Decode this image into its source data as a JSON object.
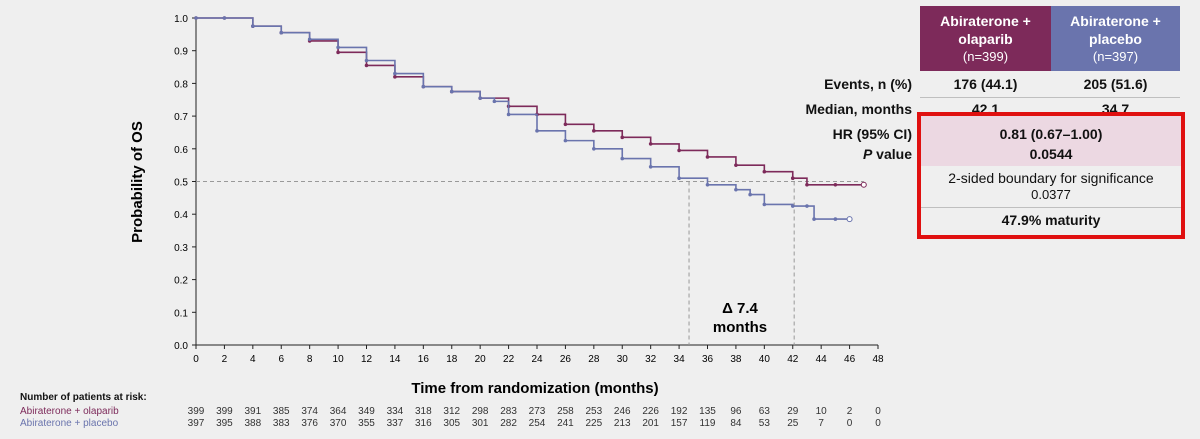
{
  "chart_data": {
    "type": "line",
    "ylabel": "Probability of OS",
    "xlabel": "Time from randomization (months)",
    "xlim": [
      0,
      48
    ],
    "ylim": [
      0,
      1
    ],
    "x_ticks": [
      "0",
      "2",
      "4",
      "6",
      "8",
      "10",
      "12",
      "14",
      "16",
      "18",
      "20",
      "22",
      "24",
      "26",
      "28",
      "30",
      "32",
      "34",
      "36",
      "38",
      "40",
      "42",
      "44",
      "46",
      "48"
    ],
    "y_ticks": [
      "0.0",
      "0.1",
      "0.2",
      "0.3",
      "0.4",
      "0.5",
      "0.6",
      "0.7",
      "0.8",
      "0.9",
      "1.0"
    ],
    "reference_y": 0.5,
    "median_markers_x": [
      34.7,
      42.1
    ],
    "series": [
      {
        "name": "Abiraterone + olaparib",
        "color": "#7d2a5a",
        "points": [
          [
            0,
            1.0
          ],
          [
            2,
            1.0
          ],
          [
            4,
            0.975
          ],
          [
            6,
            0.955
          ],
          [
            8,
            0.93
          ],
          [
            10,
            0.895
          ],
          [
            12,
            0.855
          ],
          [
            14,
            0.82
          ],
          [
            16,
            0.79
          ],
          [
            18,
            0.775
          ],
          [
            20,
            0.755
          ],
          [
            22,
            0.73
          ],
          [
            24,
            0.705
          ],
          [
            26,
            0.675
          ],
          [
            28,
            0.655
          ],
          [
            30,
            0.635
          ],
          [
            32,
            0.615
          ],
          [
            34,
            0.595
          ],
          [
            36,
            0.575
          ],
          [
            38,
            0.55
          ],
          [
            40,
            0.53
          ],
          [
            42,
            0.51
          ],
          [
            43,
            0.49
          ],
          [
            45,
            0.49
          ],
          [
            47,
            0.49
          ]
        ]
      },
      {
        "name": "Abiraterone + placebo",
        "color": "#6a74ad",
        "points": [
          [
            0,
            1.0
          ],
          [
            2,
            1.0
          ],
          [
            4,
            0.975
          ],
          [
            6,
            0.955
          ],
          [
            8,
            0.935
          ],
          [
            10,
            0.91
          ],
          [
            12,
            0.87
          ],
          [
            14,
            0.83
          ],
          [
            16,
            0.79
          ],
          [
            18,
            0.775
          ],
          [
            20,
            0.755
          ],
          [
            21,
            0.745
          ],
          [
            22,
            0.705
          ],
          [
            24,
            0.655
          ],
          [
            26,
            0.625
          ],
          [
            28,
            0.6
          ],
          [
            30,
            0.57
          ],
          [
            32,
            0.545
          ],
          [
            34,
            0.51
          ],
          [
            36,
            0.49
          ],
          [
            38,
            0.475
          ],
          [
            39,
            0.46
          ],
          [
            40,
            0.43
          ],
          [
            42,
            0.425
          ],
          [
            43,
            0.425
          ],
          [
            43.5,
            0.385
          ],
          [
            45,
            0.385
          ],
          [
            46,
            0.385
          ]
        ]
      }
    ],
    "annotation_delta": "Δ 7.4",
    "annotation_unit": "months"
  },
  "table": {
    "col1_title": "Abiraterone + olaparib",
    "col1_n": "(n=399)",
    "col2_title": "Abiraterone + placebo",
    "col2_n": "(n=397)",
    "events_label": "Events, n (%)",
    "events_col1": "176 (44.1)",
    "events_col2": "205 (51.6)",
    "median_label": "Median, months",
    "median_col1": "42.1",
    "median_col2": "34.7",
    "hr_label": "HR (95% CI)",
    "hr_value": "0.81 (0.67–1.00)",
    "p_label_italic": "P",
    "p_label_rest": " value",
    "p_value": "0.0544",
    "boundary_text": "2-sided boundary for significance",
    "boundary_value": "0.0377",
    "maturity": "47.9% maturity"
  },
  "risk": {
    "title": "Number of patients at risk:",
    "row1_label": "Abiraterone + olaparib",
    "row2_label": "Abiraterone + placebo",
    "row1": [
      "399",
      "399",
      "391",
      "385",
      "374",
      "364",
      "349",
      "334",
      "318",
      "312",
      "298",
      "283",
      "273",
      "258",
      "253",
      "246",
      "226",
      "192",
      "135",
      "96",
      "63",
      "29",
      "10",
      "2",
      "0"
    ],
    "row2": [
      "397",
      "395",
      "388",
      "383",
      "376",
      "370",
      "355",
      "337",
      "316",
      "305",
      "301",
      "282",
      "254",
      "241",
      "225",
      "213",
      "201",
      "157",
      "119",
      "84",
      "53",
      "25",
      "7",
      "0",
      "0"
    ]
  }
}
